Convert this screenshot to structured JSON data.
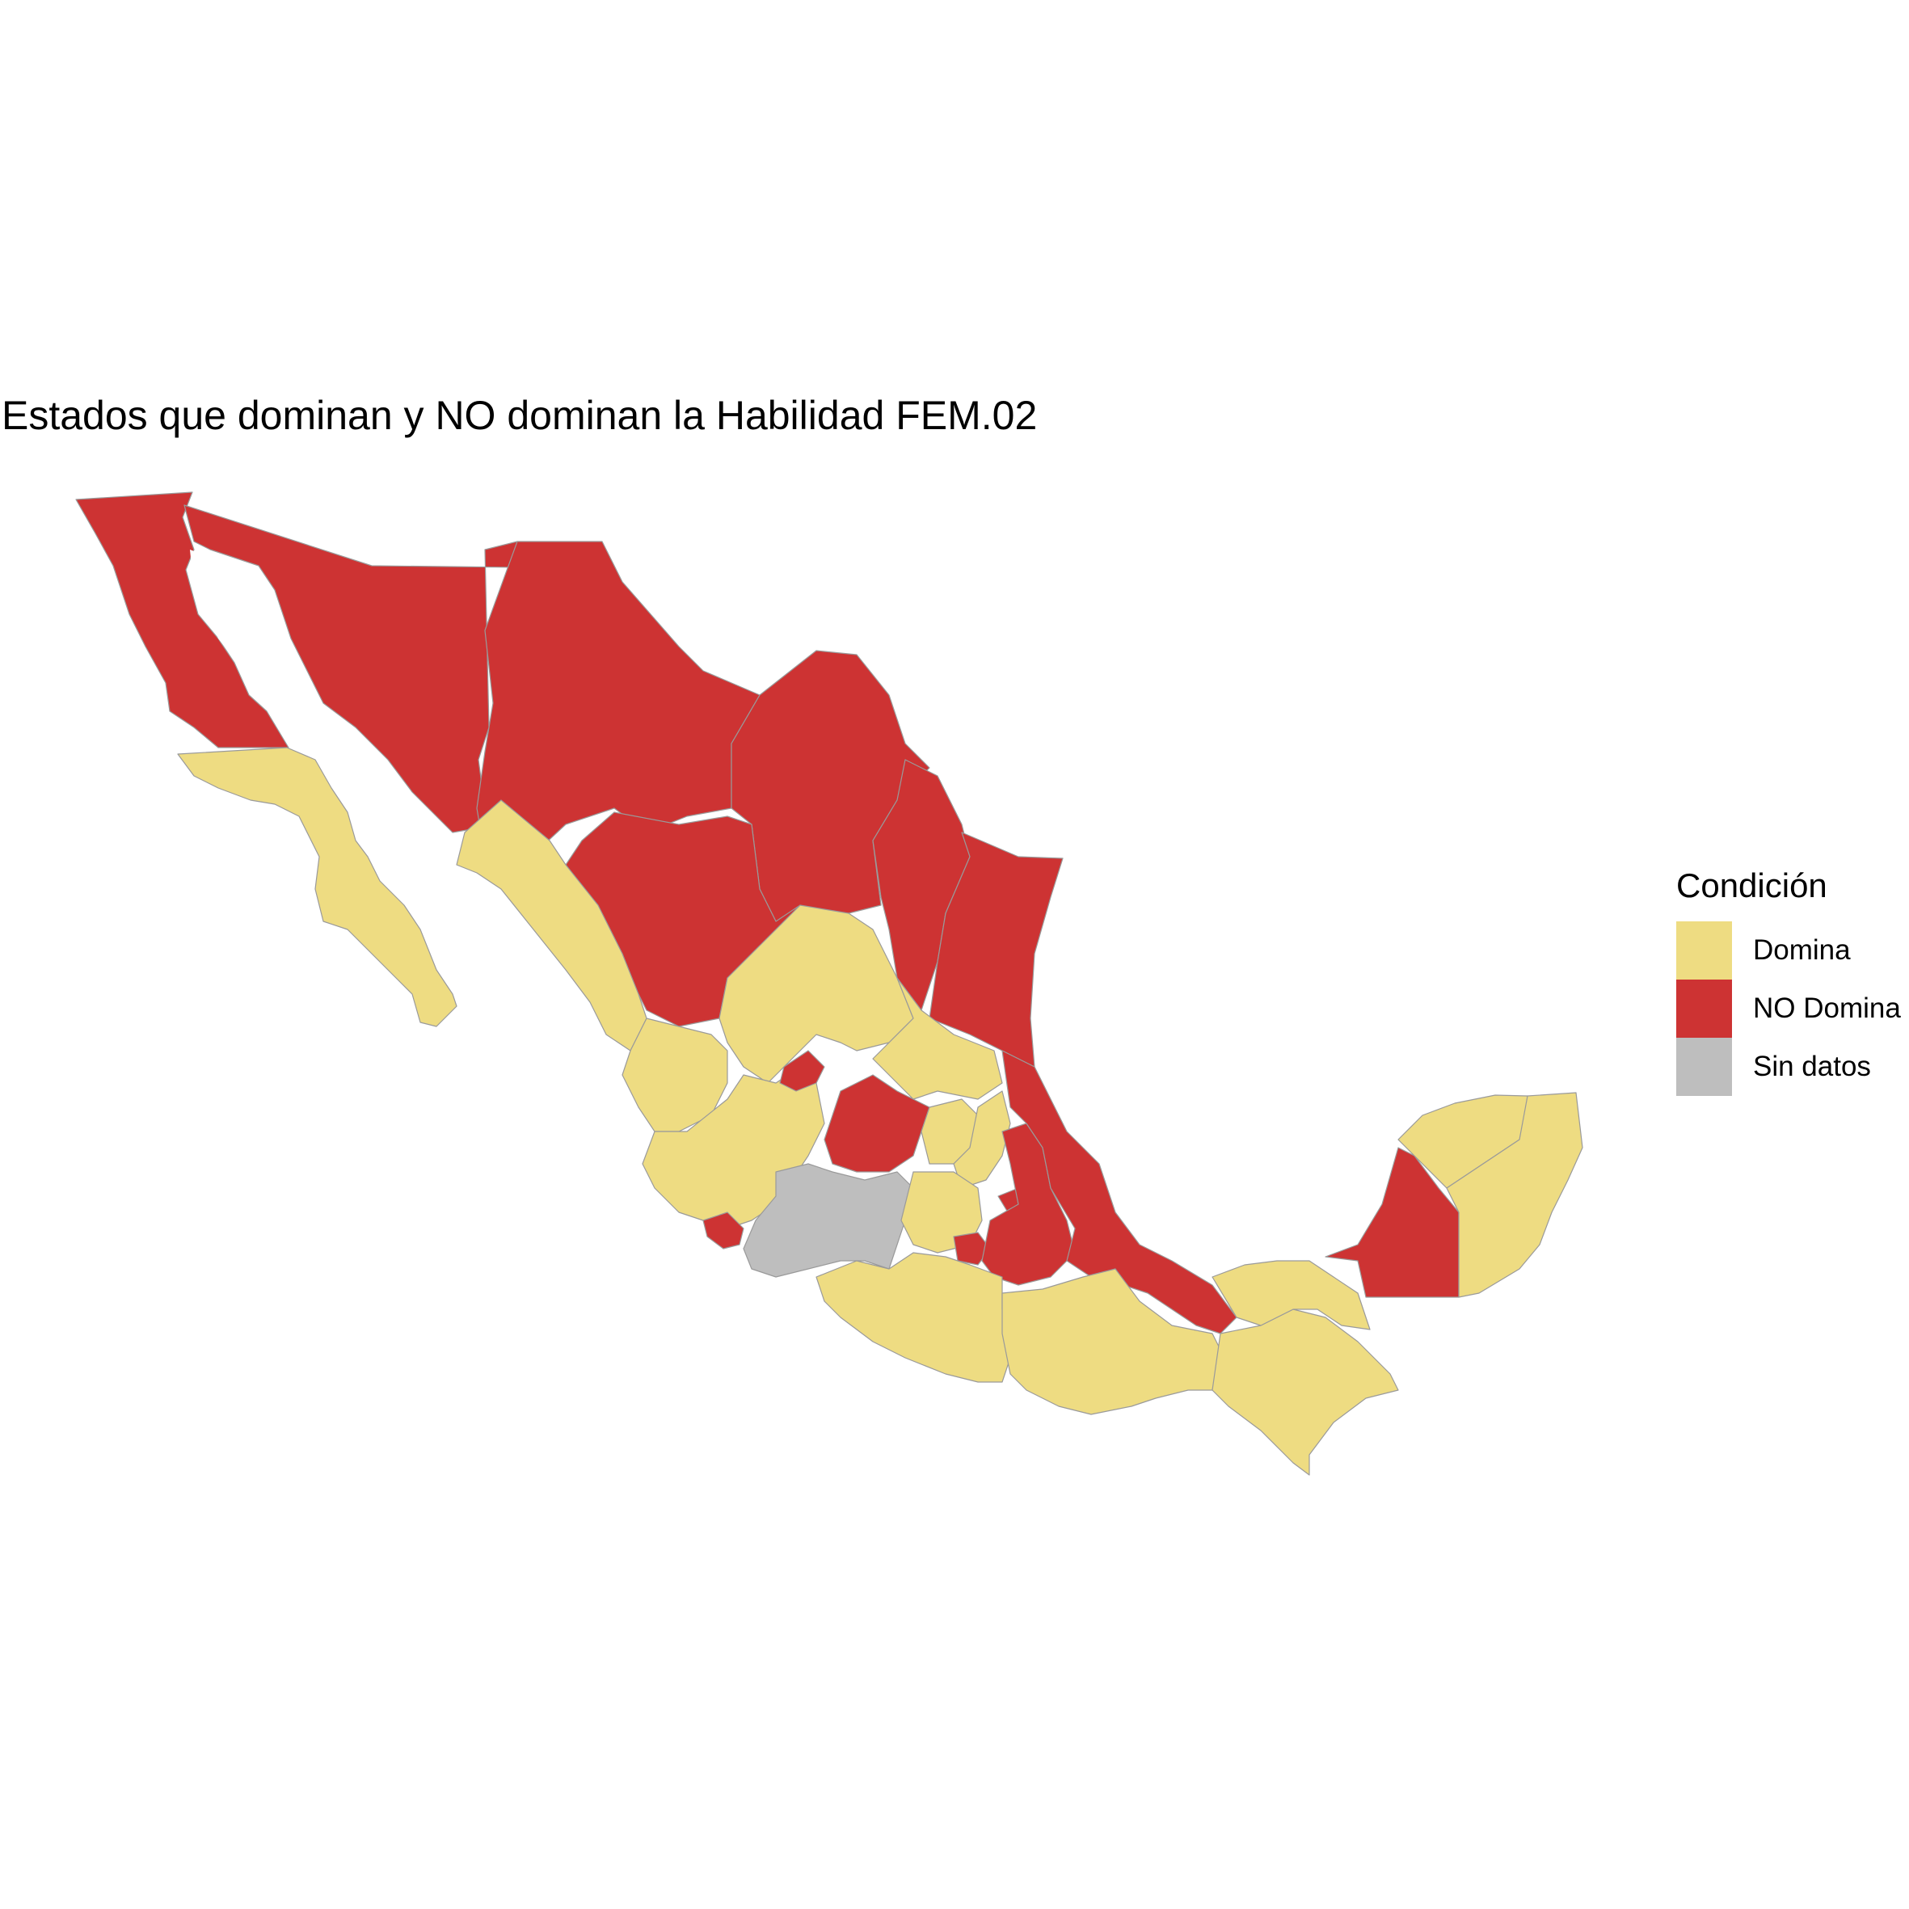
{
  "title": "Estados que dominan y NO dominan la Habilidad FEM.02",
  "legend": {
    "title": "Condición",
    "items": [
      {
        "label": "Domina",
        "color": "#EEDC82"
      },
      {
        "label": "NO Domina",
        "color": "#CD3333"
      },
      {
        "label": "Sin datos",
        "color": "#BEBEBE"
      }
    ]
  },
  "colors": {
    "domina": "#EEDC82",
    "no_domina": "#CD3333",
    "sin_datos": "#BEBEBE",
    "border": "#9a9a9a"
  }
}
